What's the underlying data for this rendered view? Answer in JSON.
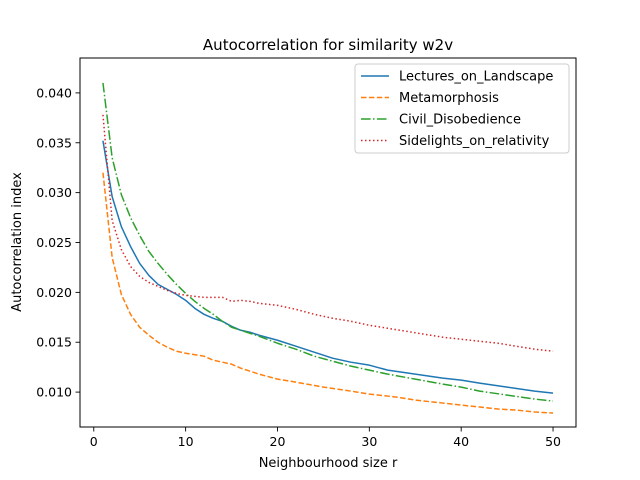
{
  "chart_data": {
    "type": "line",
    "title": "Autocorrelation for similarity w2v",
    "xlabel": "Neighbourhood size r",
    "ylabel": "Autocorrelation index",
    "xlim": [
      -1.5,
      52.5
    ],
    "ylim": [
      0.0065,
      0.0435
    ],
    "xticks": [
      0,
      10,
      20,
      30,
      40,
      50
    ],
    "xtick_labels": [
      "0",
      "10",
      "20",
      "30",
      "40",
      "50"
    ],
    "yticks": [
      0.01,
      0.015,
      0.02,
      0.025,
      0.03,
      0.035,
      0.04
    ],
    "ytick_labels": [
      "0.010",
      "0.015",
      "0.020",
      "0.025",
      "0.030",
      "0.035",
      "0.040"
    ],
    "grid": false,
    "legend_position": "top-right",
    "series": [
      {
        "name": "Lectures_on_Landscape",
        "color": "#1f77b4",
        "dash": "solid",
        "x": [
          1,
          2,
          3,
          4,
          5,
          6,
          7,
          8,
          9,
          10,
          11,
          12,
          13,
          14,
          15,
          16,
          17,
          18,
          20,
          22,
          24,
          26,
          28,
          30,
          32,
          35,
          38,
          40,
          42,
          45,
          48,
          50
        ],
        "y": [
          0.0352,
          0.0296,
          0.0266,
          0.0246,
          0.0229,
          0.0217,
          0.0208,
          0.0203,
          0.0198,
          0.0192,
          0.0184,
          0.0178,
          0.0174,
          0.0171,
          0.0166,
          0.0162,
          0.016,
          0.0157,
          0.0152,
          0.0146,
          0.014,
          0.0134,
          0.013,
          0.0127,
          0.0122,
          0.0118,
          0.0114,
          0.0112,
          0.0109,
          0.0105,
          0.0101,
          0.0099
        ]
      },
      {
        "name": "Metamorphosis",
        "color": "#ff7f0e",
        "dash": "dashed",
        "x": [
          1,
          2,
          3,
          4,
          5,
          6,
          7,
          8,
          9,
          10,
          12,
          13,
          15,
          16,
          18,
          20,
          22,
          25,
          28,
          30,
          33,
          35,
          38,
          40,
          42,
          44,
          46,
          48,
          50
        ],
        "y": [
          0.032,
          0.0235,
          0.0198,
          0.0178,
          0.0165,
          0.0157,
          0.015,
          0.0145,
          0.0141,
          0.0139,
          0.0136,
          0.0132,
          0.0128,
          0.0124,
          0.0118,
          0.0113,
          0.011,
          0.0105,
          0.0101,
          0.0098,
          0.0095,
          0.0092,
          0.0089,
          0.0087,
          0.0085,
          0.0083,
          0.0082,
          0.008,
          0.0079
        ]
      },
      {
        "name": "Civil_Disobedience",
        "color": "#2ca02c",
        "dash": "dashdot",
        "x": [
          1,
          2,
          3,
          4,
          5,
          6,
          7,
          8,
          9,
          10,
          11,
          12,
          13,
          14,
          15,
          16,
          17,
          18,
          20,
          22,
          24,
          26,
          28,
          30,
          32,
          35,
          38,
          40,
          42,
          45,
          48,
          50
        ],
        "y": [
          0.041,
          0.0335,
          0.0298,
          0.0275,
          0.0257,
          0.0241,
          0.0229,
          0.0218,
          0.0208,
          0.0199,
          0.0191,
          0.0184,
          0.0178,
          0.0171,
          0.0165,
          0.0162,
          0.0159,
          0.0156,
          0.0149,
          0.0143,
          0.0136,
          0.0131,
          0.0126,
          0.0122,
          0.0118,
          0.0113,
          0.0108,
          0.0105,
          0.0101,
          0.0097,
          0.0093,
          0.0091
        ]
      },
      {
        "name": "Sidelights_on_relativity",
        "color": "#d62728",
        "dash": "dotted",
        "x": [
          1,
          2,
          3,
          4,
          5,
          6,
          7,
          8,
          9,
          10,
          11,
          12,
          13,
          14,
          15,
          16,
          17,
          18,
          20,
          22,
          24,
          26,
          28,
          30,
          32,
          34,
          36,
          38,
          40,
          42,
          44,
          46,
          48,
          50
        ],
        "y": [
          0.0378,
          0.0272,
          0.0243,
          0.0226,
          0.0216,
          0.021,
          0.0206,
          0.0202,
          0.0199,
          0.0197,
          0.0196,
          0.0195,
          0.0195,
          0.0195,
          0.0191,
          0.0192,
          0.0191,
          0.0189,
          0.0187,
          0.0183,
          0.0178,
          0.0174,
          0.0171,
          0.0167,
          0.0164,
          0.0161,
          0.0158,
          0.0155,
          0.0153,
          0.0151,
          0.0149,
          0.0146,
          0.0143,
          0.0141
        ]
      }
    ]
  }
}
